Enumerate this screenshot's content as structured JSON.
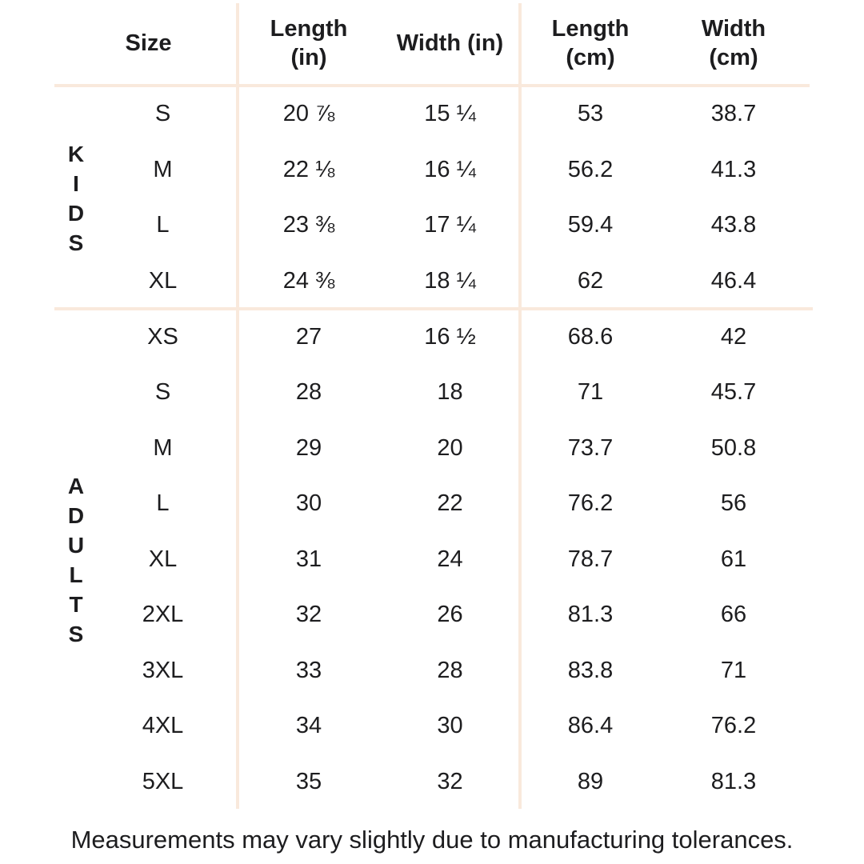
{
  "colors": {
    "background": "#ffffff",
    "divider": "#f9e9dc",
    "text": "#1d1d1f"
  },
  "display": {
    "headers": {
      "size": "Size",
      "length_in": "Length\n(in)",
      "width_in": "Width (in)",
      "length_cm": "Length\n(cm)",
      "width_cm": "Width\n(cm)"
    },
    "group_labels": {
      "kids": "K\nI\nD\nS",
      "adults": "A\nD\nU\nL\nT\nS"
    }
  },
  "chart_data": {
    "type": "table",
    "columns": [
      "Size",
      "Length (in)",
      "Width (in)",
      "Length (cm)",
      "Width (cm)"
    ],
    "row_groups": [
      {
        "group": "KIDS",
        "rows": [
          [
            "S",
            "20 ⅞",
            "15 ¼",
            "53",
            "38.7"
          ],
          [
            "M",
            "22 ⅛",
            "16 ¼",
            "56.2",
            "41.3"
          ],
          [
            "L",
            "23 ⅜",
            "17 ¼",
            "59.4",
            "43.8"
          ],
          [
            "XL",
            "24 ⅜",
            "18 ¼",
            "62",
            "46.4"
          ]
        ]
      },
      {
        "group": "ADULTS",
        "rows": [
          [
            "XS",
            "27",
            "16 ½",
            "68.6",
            "42"
          ],
          [
            "S",
            "28",
            "18",
            "71",
            "45.7"
          ],
          [
            "M",
            "29",
            "20",
            "73.7",
            "50.8"
          ],
          [
            "L",
            "30",
            "22",
            "76.2",
            "56"
          ],
          [
            "XL",
            "31",
            "24",
            "78.7",
            "61"
          ],
          [
            "2XL",
            "32",
            "26",
            "81.3",
            "66"
          ],
          [
            "3XL",
            "33",
            "28",
            "83.8",
            "71"
          ],
          [
            "4XL",
            "34",
            "30",
            "86.4",
            "76.2"
          ],
          [
            "5XL",
            "35",
            "32",
            "89",
            "81.3"
          ]
        ]
      }
    ],
    "footnote": "Measurements may vary slightly due to manufacturing tolerances."
  }
}
